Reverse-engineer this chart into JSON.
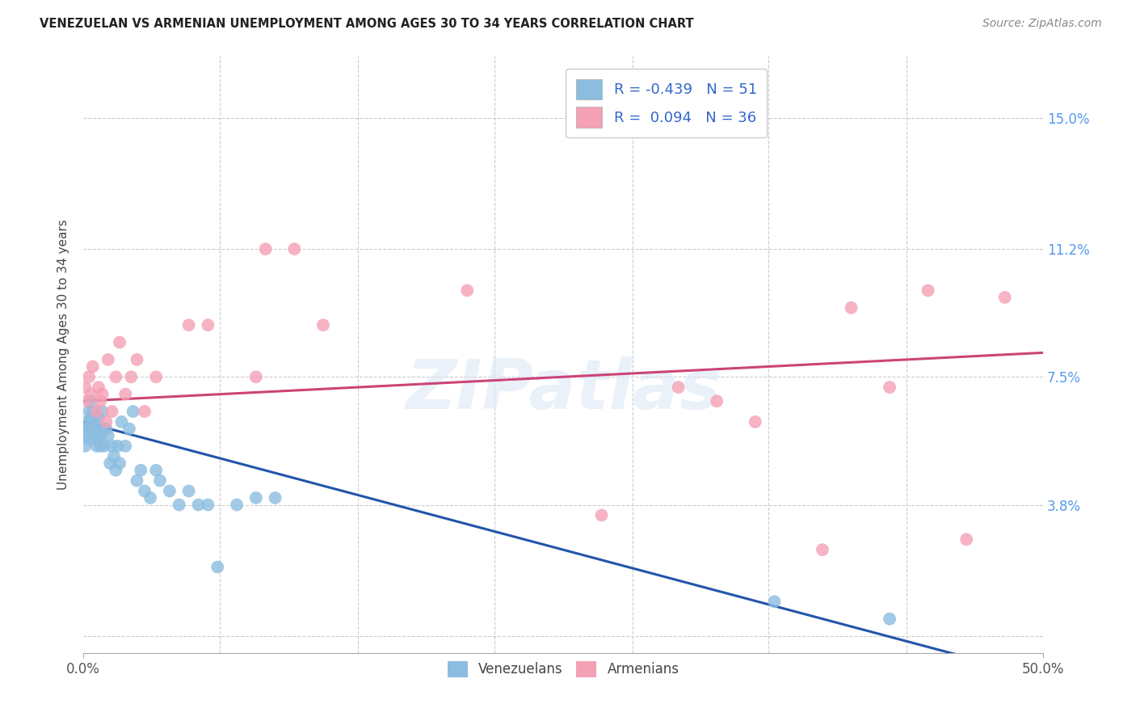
{
  "title": "VENEZUELAN VS ARMENIAN UNEMPLOYMENT AMONG AGES 30 TO 34 YEARS CORRELATION CHART",
  "source": "Source: ZipAtlas.com",
  "ylabel": "Unemployment Among Ages 30 to 34 years",
  "xlim": [
    0.0,
    0.5
  ],
  "ylim": [
    -0.005,
    0.168
  ],
  "xticks": [
    0.0,
    0.5
  ],
  "xticklabels": [
    "0.0%",
    "50.0%"
  ],
  "yticks_right": [
    0.0,
    0.038,
    0.075,
    0.112,
    0.15
  ],
  "ytick_labels_right": [
    "",
    "3.8%",
    "7.5%",
    "11.2%",
    "15.0%"
  ],
  "venezuelan_color": "#8bbde0",
  "armenian_color": "#f4a0b5",
  "venezuelan_line_color": "#2255aa",
  "armenian_line_color": "#cc4477",
  "background_color": "#ffffff",
  "grid_color": "#cccccc",
  "R_venezuelan": -0.439,
  "N_venezuelan": 51,
  "R_armenian": 0.094,
  "N_armenian": 36,
  "venezuelan_x": [
    0.001,
    0.001,
    0.002,
    0.002,
    0.003,
    0.003,
    0.003,
    0.004,
    0.004,
    0.005,
    0.005,
    0.006,
    0.006,
    0.007,
    0.007,
    0.008,
    0.008,
    0.009,
    0.009,
    0.01,
    0.01,
    0.011,
    0.012,
    0.013,
    0.014,
    0.015,
    0.016,
    0.017,
    0.018,
    0.019,
    0.02,
    0.022,
    0.024,
    0.026,
    0.028,
    0.03,
    0.032,
    0.035,
    0.038,
    0.04,
    0.045,
    0.05,
    0.055,
    0.06,
    0.065,
    0.07,
    0.08,
    0.09,
    0.1,
    0.36,
    0.42
  ],
  "venezuelan_y": [
    0.06,
    0.055,
    0.058,
    0.062,
    0.06,
    0.065,
    0.057,
    0.063,
    0.068,
    0.06,
    0.065,
    0.058,
    0.062,
    0.055,
    0.057,
    0.063,
    0.06,
    0.055,
    0.058,
    0.06,
    0.065,
    0.055,
    0.06,
    0.058,
    0.05,
    0.055,
    0.052,
    0.048,
    0.055,
    0.05,
    0.062,
    0.055,
    0.06,
    0.065,
    0.045,
    0.048,
    0.042,
    0.04,
    0.048,
    0.045,
    0.042,
    0.038,
    0.042,
    0.038,
    0.038,
    0.02,
    0.038,
    0.04,
    0.04,
    0.01,
    0.005
  ],
  "armenian_x": [
    0.001,
    0.002,
    0.003,
    0.004,
    0.005,
    0.007,
    0.008,
    0.009,
    0.01,
    0.012,
    0.013,
    0.015,
    0.017,
    0.019,
    0.022,
    0.025,
    0.028,
    0.032,
    0.038,
    0.055,
    0.065,
    0.09,
    0.095,
    0.11,
    0.125,
    0.2,
    0.27,
    0.31,
    0.33,
    0.35,
    0.385,
    0.4,
    0.42,
    0.44,
    0.46,
    0.48
  ],
  "armenian_y": [
    0.072,
    0.068,
    0.075,
    0.07,
    0.078,
    0.065,
    0.072,
    0.068,
    0.07,
    0.062,
    0.08,
    0.065,
    0.075,
    0.085,
    0.07,
    0.075,
    0.08,
    0.065,
    0.075,
    0.09,
    0.09,
    0.075,
    0.112,
    0.112,
    0.09,
    0.1,
    0.035,
    0.072,
    0.068,
    0.062,
    0.025,
    0.095,
    0.072,
    0.1,
    0.028,
    0.098
  ]
}
